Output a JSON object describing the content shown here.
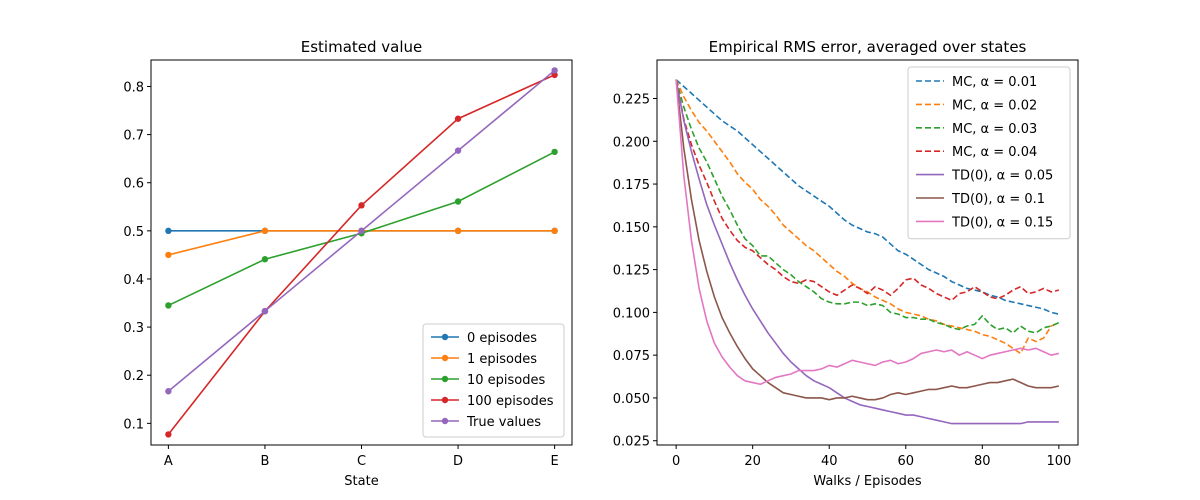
{
  "chart_data": [
    {
      "type": "line",
      "title": "Estimated value",
      "xlabel": "State",
      "ylabel": "",
      "categories": [
        "A",
        "B",
        "C",
        "D",
        "E"
      ],
      "ylim": [
        0.055,
        0.855
      ],
      "yticks": [
        0.1,
        0.2,
        0.3,
        0.4,
        0.5,
        0.6,
        0.7,
        0.8
      ],
      "grid": false,
      "legend_position": "lower-right",
      "series": [
        {
          "name": "0 episodes",
          "color": "#1f77b4",
          "values": [
            0.5,
            0.5,
            0.5,
            0.5,
            0.5
          ]
        },
        {
          "name": "1 episodes",
          "color": "#ff7f0e",
          "values": [
            0.45,
            0.5,
            0.5,
            0.5,
            0.5
          ]
        },
        {
          "name": "10 episodes",
          "color": "#2ca02c",
          "values": [
            0.345,
            0.441,
            0.495,
            0.561,
            0.664
          ]
        },
        {
          "name": "100 episodes",
          "color": "#d62728",
          "values": [
            0.077,
            0.333,
            0.553,
            0.733,
            0.824
          ]
        },
        {
          "name": "True values",
          "color": "#9467bd",
          "values": [
            0.1667,
            0.3333,
            0.5,
            0.6667,
            0.8333
          ]
        }
      ]
    },
    {
      "type": "line",
      "title": "Empirical RMS error, averaged over states",
      "xlabel": "Walks / Episodes",
      "ylabel": "",
      "xlim": [
        -5,
        105
      ],
      "ylim": [
        0.0225,
        0.2475
      ],
      "xticks": [
        0,
        20,
        40,
        60,
        80,
        100
      ],
      "yticks": [
        0.025,
        0.05,
        0.075,
        0.1,
        0.125,
        0.15,
        0.175,
        0.2,
        0.225
      ],
      "grid": false,
      "legend_position": "upper-right",
      "x": [
        0,
        2,
        4,
        6,
        8,
        10,
        12,
        14,
        16,
        18,
        20,
        22,
        24,
        26,
        28,
        30,
        32,
        34,
        36,
        38,
        40,
        42,
        44,
        46,
        48,
        50,
        52,
        54,
        56,
        58,
        60,
        62,
        64,
        66,
        68,
        70,
        72,
        74,
        76,
        78,
        80,
        82,
        84,
        86,
        88,
        90,
        92,
        94,
        96,
        98,
        100
      ],
      "series": [
        {
          "name": "MC, α = 0.01",
          "color": "#1f77b4",
          "dash": true,
          "values": [
            0.236,
            0.232,
            0.228,
            0.224,
            0.22,
            0.216,
            0.212,
            0.209,
            0.206,
            0.202,
            0.198,
            0.194,
            0.19,
            0.186,
            0.182,
            0.178,
            0.174,
            0.171,
            0.168,
            0.165,
            0.162,
            0.158,
            0.154,
            0.151,
            0.149,
            0.147,
            0.146,
            0.144,
            0.14,
            0.136,
            0.134,
            0.131,
            0.128,
            0.125,
            0.123,
            0.121,
            0.118,
            0.116,
            0.114,
            0.113,
            0.112,
            0.11,
            0.109,
            0.107,
            0.106,
            0.105,
            0.104,
            0.103,
            0.102,
            0.1,
            0.099
          ]
        },
        {
          "name": "MC, α = 0.02",
          "color": "#ff7f0e",
          "dash": true,
          "values": [
            0.236,
            0.226,
            0.218,
            0.211,
            0.206,
            0.2,
            0.194,
            0.188,
            0.181,
            0.176,
            0.172,
            0.166,
            0.162,
            0.157,
            0.151,
            0.147,
            0.143,
            0.139,
            0.136,
            0.132,
            0.128,
            0.124,
            0.121,
            0.117,
            0.114,
            0.112,
            0.109,
            0.107,
            0.105,
            0.102,
            0.1,
            0.099,
            0.098,
            0.096,
            0.095,
            0.093,
            0.092,
            0.091,
            0.09,
            0.089,
            0.087,
            0.086,
            0.084,
            0.082,
            0.079,
            0.076,
            0.085,
            0.083,
            0.085,
            0.092,
            0.094
          ]
        },
        {
          "name": "MC, α = 0.03",
          "color": "#2ca02c",
          "dash": true,
          "values": [
            0.236,
            0.22,
            0.207,
            0.196,
            0.188,
            0.178,
            0.168,
            0.16,
            0.151,
            0.143,
            0.139,
            0.133,
            0.133,
            0.129,
            0.125,
            0.122,
            0.118,
            0.115,
            0.112,
            0.108,
            0.106,
            0.105,
            0.105,
            0.106,
            0.106,
            0.104,
            0.105,
            0.104,
            0.1,
            0.099,
            0.097,
            0.097,
            0.096,
            0.096,
            0.094,
            0.093,
            0.091,
            0.09,
            0.092,
            0.093,
            0.098,
            0.093,
            0.09,
            0.091,
            0.088,
            0.092,
            0.089,
            0.088,
            0.091,
            0.092,
            0.094
          ]
        },
        {
          "name": "MC, α = 0.04",
          "color": "#d62728",
          "dash": true,
          "values": [
            0.236,
            0.213,
            0.198,
            0.186,
            0.176,
            0.165,
            0.155,
            0.148,
            0.142,
            0.138,
            0.136,
            0.132,
            0.128,
            0.125,
            0.121,
            0.118,
            0.117,
            0.119,
            0.118,
            0.115,
            0.112,
            0.11,
            0.113,
            0.116,
            0.114,
            0.111,
            0.115,
            0.113,
            0.11,
            0.114,
            0.119,
            0.12,
            0.116,
            0.114,
            0.111,
            0.109,
            0.107,
            0.111,
            0.112,
            0.115,
            0.112,
            0.109,
            0.108,
            0.11,
            0.113,
            0.115,
            0.111,
            0.112,
            0.114,
            0.112,
            0.113
          ]
        },
        {
          "name": "TD(0), α = 0.05",
          "color": "#9467bd",
          "dash": false,
          "values": [
            0.236,
            0.212,
            0.194,
            0.178,
            0.163,
            0.151,
            0.14,
            0.129,
            0.119,
            0.11,
            0.102,
            0.095,
            0.088,
            0.082,
            0.076,
            0.071,
            0.067,
            0.063,
            0.06,
            0.058,
            0.056,
            0.053,
            0.05,
            0.048,
            0.046,
            0.045,
            0.044,
            0.043,
            0.042,
            0.041,
            0.04,
            0.04,
            0.039,
            0.038,
            0.037,
            0.036,
            0.035,
            0.035,
            0.035,
            0.035,
            0.035,
            0.035,
            0.035,
            0.035,
            0.035,
            0.035,
            0.036,
            0.036,
            0.036,
            0.036,
            0.036
          ]
        },
        {
          "name": "TD(0), α = 0.1",
          "color": "#8c564b",
          "dash": false,
          "values": [
            0.236,
            0.196,
            0.166,
            0.142,
            0.124,
            0.109,
            0.097,
            0.088,
            0.08,
            0.073,
            0.067,
            0.063,
            0.059,
            0.056,
            0.053,
            0.052,
            0.051,
            0.05,
            0.05,
            0.05,
            0.049,
            0.05,
            0.05,
            0.051,
            0.05,
            0.049,
            0.049,
            0.05,
            0.052,
            0.053,
            0.052,
            0.053,
            0.054,
            0.055,
            0.055,
            0.056,
            0.057,
            0.056,
            0.056,
            0.057,
            0.058,
            0.059,
            0.059,
            0.06,
            0.061,
            0.059,
            0.057,
            0.056,
            0.056,
            0.056,
            0.057
          ]
        },
        {
          "name": "TD(0), α = 0.15",
          "color": "#e377c2",
          "dash": false,
          "values": [
            0.236,
            0.18,
            0.142,
            0.114,
            0.095,
            0.082,
            0.074,
            0.068,
            0.063,
            0.06,
            0.059,
            0.058,
            0.06,
            0.062,
            0.063,
            0.064,
            0.066,
            0.066,
            0.066,
            0.067,
            0.069,
            0.068,
            0.07,
            0.072,
            0.071,
            0.07,
            0.069,
            0.071,
            0.072,
            0.07,
            0.071,
            0.073,
            0.076,
            0.077,
            0.078,
            0.077,
            0.078,
            0.075,
            0.077,
            0.075,
            0.073,
            0.075,
            0.076,
            0.077,
            0.078,
            0.079,
            0.078,
            0.079,
            0.077,
            0.075,
            0.076
          ]
        }
      ]
    }
  ]
}
